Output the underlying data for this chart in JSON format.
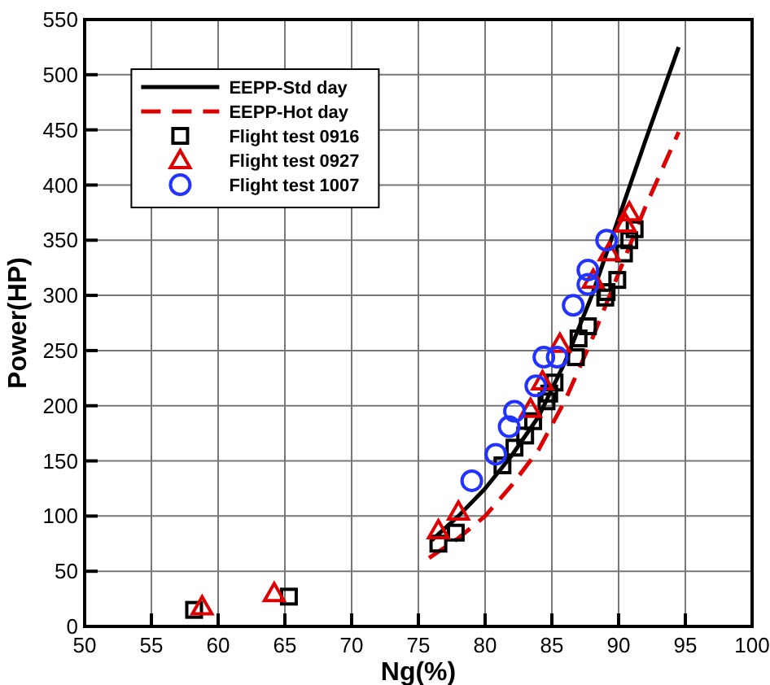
{
  "chart_data": {
    "type": "scatter",
    "xlabel": "Ng(%)",
    "ylabel": "Power(HP)",
    "xlim": [
      50,
      100
    ],
    "ylim": [
      0,
      550
    ],
    "xticks": [
      50,
      55,
      60,
      65,
      70,
      75,
      80,
      85,
      90,
      95,
      100
    ],
    "yticks": [
      0,
      50,
      100,
      150,
      200,
      250,
      300,
      350,
      400,
      450,
      500,
      550
    ],
    "grid": true,
    "legend": "top left",
    "series": [
      {
        "name": "EEPP-Std day",
        "type": "line",
        "line_style": "solid",
        "marker": "none",
        "color": "#000000",
        "x": [
          76,
          78,
          80,
          82,
          84,
          86,
          88,
          90,
          92,
          94.5
        ],
        "values": [
          78,
          100,
          125,
          155,
          190,
          240,
          300,
          370,
          440,
          525
        ]
      },
      {
        "name": "EEPP-Hot day",
        "type": "line",
        "line_style": "dashed",
        "marker": "none",
        "color": "#dd0000",
        "x": [
          75.8,
          78,
          80,
          82,
          84,
          86,
          88,
          90,
          92,
          94.5
        ],
        "values": [
          62,
          80,
          100,
          128,
          160,
          205,
          260,
          320,
          380,
          448
        ]
      },
      {
        "name": "Flight test 0916",
        "marker": "square",
        "color": "#000000",
        "x": [
          58.2,
          65.3,
          76.5,
          77.8,
          81.3,
          82.2,
          83,
          83.6,
          84.6,
          84.8,
          85.2,
          86.8,
          87,
          87.7,
          89,
          89.1,
          89.9,
          90.4,
          90.8,
          91.2
        ],
        "values": [
          15,
          27,
          75,
          85,
          146,
          162,
          173,
          186,
          204,
          211,
          221,
          244,
          261,
          272,
          298,
          303,
          314,
          338,
          350,
          360
        ]
      },
      {
        "name": "Flight test 0927",
        "marker": "triangle",
        "color": "#dd0000",
        "x": [
          58.8,
          64.2,
          76.5,
          78,
          83.4,
          84.3,
          85.6,
          88.1,
          89.3,
          90.5,
          90.8
        ],
        "values": [
          18,
          30,
          87,
          104,
          197,
          222,
          256,
          314,
          339,
          365,
          375
        ]
      },
      {
        "name": "Flight test 1007",
        "marker": "circle",
        "color": "#2233ff",
        "x": [
          79,
          80.8,
          81.8,
          82.2,
          83.8,
          84.4,
          85.4,
          86.6,
          87.7,
          87.7,
          89.1
        ],
        "values": [
          132,
          156,
          181,
          195,
          218,
          244,
          244,
          291,
          310,
          323,
          350
        ]
      }
    ]
  }
}
